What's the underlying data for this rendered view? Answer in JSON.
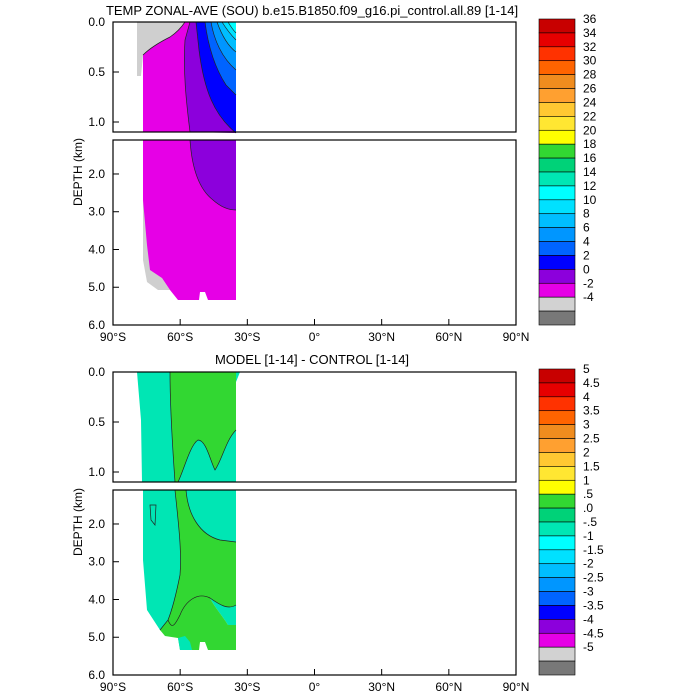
{
  "chart_data": [
    {
      "type": "contour",
      "title": "TEMP ZONAL-AVE (SOU) b.e15.B1850.f09_g16.pi_control.all.89 [1-14]",
      "ylabel": "DEPTH (km)",
      "x_ticks": [
        "90°S",
        "60°S",
        "30°S",
        "0°",
        "30°N",
        "60°N",
        "90°N"
      ],
      "upper_y_ticks": [
        "0.0",
        "0.5",
        "1.0"
      ],
      "lower_y_ticks": [
        "2.0",
        "3.0",
        "4.0",
        "5.0",
        "6.0"
      ],
      "xlim": [
        -90,
        90
      ],
      "ylim_upper_km": [
        0,
        1.1
      ],
      "ylim_lower_km": [
        1.1,
        6.0
      ],
      "colorbar": {
        "labels": [
          "36",
          "34",
          "32",
          "30",
          "28",
          "26",
          "24",
          "22",
          "20",
          "18",
          "16",
          "14",
          "12",
          "10",
          "8",
          "6",
          "4",
          "2",
          "0",
          "-2",
          "-4"
        ],
        "colors": [
          "#c80000",
          "#e60000",
          "#ff3200",
          "#ff6400",
          "#f08c1e",
          "#ffa030",
          "#ffc832",
          "#ffe632",
          "#ffff00",
          "#32d732",
          "#00d278",
          "#00e6b4",
          "#00ffff",
          "#00e1ff",
          "#00beff",
          "#0096ff",
          "#0064ff",
          "#0000ff",
          "#8c00dc",
          "#e600e6",
          "#d2d2d2",
          "#787878"
        ]
      }
    },
    {
      "type": "contour",
      "title": "MODEL [1-14] - CONTROL [1-14]",
      "ylabel": "DEPTH (km)",
      "x_ticks": [
        "90°S",
        "60°S",
        "30°S",
        "0°",
        "30°N",
        "60°N",
        "90°N"
      ],
      "upper_y_ticks": [
        "0.0",
        "0.5",
        "1.0"
      ],
      "lower_y_ticks": [
        "2.0",
        "3.0",
        "4.0",
        "5.0",
        "6.0"
      ],
      "xlim": [
        -90,
        90
      ],
      "ylim_upper_km": [
        0,
        1.1
      ],
      "ylim_lower_km": [
        1.1,
        6.0
      ],
      "colorbar": {
        "labels": [
          "5",
          "4.5",
          "4",
          "3.5",
          "3",
          "2.5",
          "2",
          "1.5",
          "1",
          ".5",
          ".0",
          "-.5",
          "-1",
          "-1.5",
          "-2",
          "-2.5",
          "-3",
          "-3.5",
          "-4",
          "-4.5",
          "-5"
        ],
        "colors": [
          "#c80000",
          "#e60000",
          "#ff3200",
          "#ff6400",
          "#f08c1e",
          "#ffa030",
          "#ffc832",
          "#ffe632",
          "#ffff00",
          "#32d732",
          "#00d278",
          "#00e6b4",
          "#00ffff",
          "#00e1ff",
          "#00beff",
          "#0096ff",
          "#0064ff",
          "#0000ff",
          "#8c00dc",
          "#e600e6",
          "#d2d2d2",
          "#787878"
        ]
      }
    }
  ]
}
